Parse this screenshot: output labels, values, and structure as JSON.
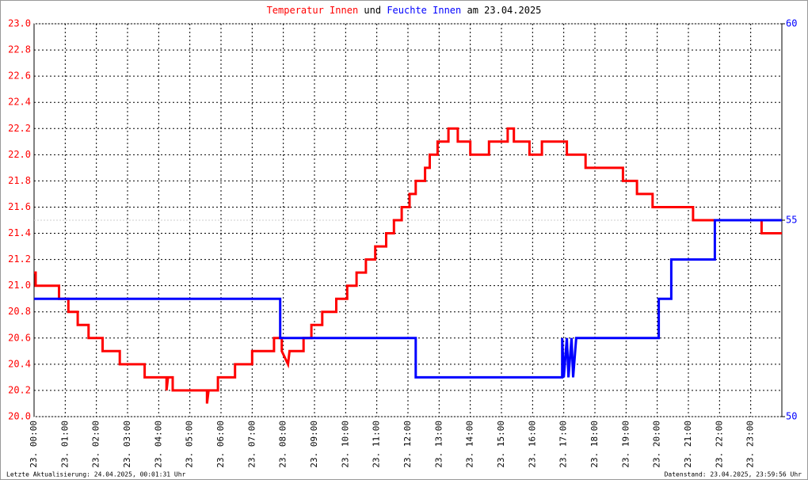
{
  "chart_data": {
    "type": "line",
    "title_parts": [
      {
        "text": "Temperatur Innen",
        "color": "#ff0000"
      },
      {
        "text": "und",
        "color": "#000000"
      },
      {
        "text": "Feuchte Innen",
        "color": "#0000ff"
      },
      {
        "text": "am 23.04.2025",
        "color": "#000000"
      }
    ],
    "footer_left": "Letzte Aktualisierung: 24.04.2025, 00:01:31 Uhr",
    "footer_right": "Datenstand: 23.04.2025, 23:59:56 Uhr",
    "xlim": [
      0,
      24
    ],
    "xticks": [
      {
        "value": 0,
        "label": "23. 00:00"
      },
      {
        "value": 1,
        "label": "23. 01:00"
      },
      {
        "value": 2,
        "label": "23. 02:00"
      },
      {
        "value": 3,
        "label": "23. 03:00"
      },
      {
        "value": 4,
        "label": "23. 04:00"
      },
      {
        "value": 5,
        "label": "23. 05:00"
      },
      {
        "value": 6,
        "label": "23. 06:00"
      },
      {
        "value": 7,
        "label": "23. 07:00"
      },
      {
        "value": 8,
        "label": "23. 08:00"
      },
      {
        "value": 9,
        "label": "23. 09:00"
      },
      {
        "value": 10,
        "label": "23. 10:00"
      },
      {
        "value": 11,
        "label": "23. 11:00"
      },
      {
        "value": 12,
        "label": "23. 12:00"
      },
      {
        "value": 13,
        "label": "23. 13:00"
      },
      {
        "value": 14,
        "label": "23. 14:00"
      },
      {
        "value": 15,
        "label": "23. 15:00"
      },
      {
        "value": 16,
        "label": "23. 16:00"
      },
      {
        "value": 17,
        "label": "23. 17:00"
      },
      {
        "value": 18,
        "label": "23. 18:00"
      },
      {
        "value": 19,
        "label": "23. 19:00"
      },
      {
        "value": 20,
        "label": "23. 20:00"
      },
      {
        "value": 21,
        "label": "23. 21:00"
      },
      {
        "value": 22,
        "label": "23. 22:00"
      },
      {
        "value": 23,
        "label": "23. 23:00"
      }
    ],
    "ylim": [
      20,
      23
    ],
    "yticks": [
      {
        "value": 20,
        "label": "20.0"
      },
      {
        "value": 20.2,
        "label": "20.2"
      },
      {
        "value": 20.4,
        "label": "20.4"
      },
      {
        "value": 20.6,
        "label": "20.6"
      },
      {
        "value": 20.8,
        "label": "20.8"
      },
      {
        "value": 21,
        "label": "21.0"
      },
      {
        "value": 21.2,
        "label": "21.2"
      },
      {
        "value": 21.4,
        "label": "21.4"
      },
      {
        "value": 21.6,
        "label": "21.6"
      },
      {
        "value": 21.8,
        "label": "21.8"
      },
      {
        "value": 22,
        "label": "22.0"
      },
      {
        "value": 22.2,
        "label": "22.2"
      },
      {
        "value": 22.4,
        "label": "22.4"
      },
      {
        "value": 22.6,
        "label": "22.6"
      },
      {
        "value": 22.8,
        "label": "22.8"
      },
      {
        "value": 23,
        "label": "23.0"
      }
    ],
    "y2lim": [
      50,
      60
    ],
    "y2ticks": [
      50,
      55,
      60
    ],
    "grid": true,
    "series": [
      {
        "name": "Temperatur Innen",
        "color": "#ff0000",
        "x": [
          0,
          0.05,
          0.05,
          0.8,
          0.8,
          1.1,
          1.1,
          1.4,
          1.4,
          1.75,
          1.75,
          2.2,
          2.2,
          2.75,
          2.75,
          3.55,
          3.55,
          4.25,
          4.25,
          4.3,
          4.45,
          4.45,
          5.55,
          5.55,
          5.6,
          5.9,
          5.9,
          6.45,
          6.45,
          7.0,
          7.0,
          7.7,
          7.7,
          7.95,
          7.95,
          8.15,
          8.2,
          8.65,
          8.65,
          8.9,
          8.9,
          9.25,
          9.25,
          9.7,
          9.7,
          10.05,
          10.05,
          10.35,
          10.35,
          10.65,
          10.65,
          10.95,
          10.95,
          11.3,
          11.3,
          11.55,
          11.55,
          11.8,
          11.8,
          12.05,
          12.05,
          12.25,
          12.25,
          12.55,
          12.55,
          12.7,
          12.7,
          12.95,
          12.95,
          13.3,
          13.3,
          13.6,
          13.6,
          14.0,
          14.0,
          14.6,
          14.6,
          15.2,
          15.2,
          15.4,
          15.4,
          15.9,
          15.9,
          16.3,
          16.3,
          17.1,
          17.1,
          17.7,
          17.7,
          18.9,
          18.9,
          19.35,
          19.35,
          19.85,
          19.85,
          21.15,
          21.15,
          23.35,
          23.35,
          24
        ],
        "values": [
          21.1,
          21.1,
          21.0,
          21.0,
          20.9,
          20.9,
          20.8,
          20.8,
          20.7,
          20.7,
          20.6,
          20.6,
          20.5,
          20.5,
          20.4,
          20.4,
          20.3,
          20.3,
          20.2,
          20.3,
          20.3,
          20.2,
          20.2,
          20.1,
          20.2,
          20.2,
          20.3,
          20.3,
          20.4,
          20.4,
          20.5,
          20.5,
          20.6,
          20.6,
          20.5,
          20.4,
          20.5,
          20.5,
          20.6,
          20.6,
          20.7,
          20.7,
          20.8,
          20.8,
          20.9,
          20.9,
          21.0,
          21.0,
          21.1,
          21.1,
          21.2,
          21.2,
          21.3,
          21.3,
          21.4,
          21.4,
          21.5,
          21.5,
          21.6,
          21.6,
          21.7,
          21.7,
          21.8,
          21.8,
          21.9,
          21.9,
          22.0,
          22.0,
          22.1,
          22.1,
          22.2,
          22.2,
          22.1,
          22.1,
          22.0,
          22.0,
          22.1,
          22.1,
          22.2,
          22.2,
          22.1,
          22.1,
          22.0,
          22.0,
          22.1,
          22.1,
          22.0,
          22.0,
          21.9,
          21.9,
          21.8,
          21.8,
          21.7,
          21.7,
          21.6,
          21.6,
          21.5,
          21.5,
          21.4,
          21.4
        ]
      },
      {
        "name": "Feuchte Innen",
        "color": "#0000ff",
        "axis": "y2",
        "x": [
          0,
          7.9,
          7.9,
          12.25,
          12.25,
          16.95,
          16.95,
          17.0,
          17.1,
          17.15,
          17.25,
          17.3,
          17.4,
          17.45,
          20.05,
          20.05,
          20.45,
          20.45,
          21.85,
          21.85,
          24
        ],
        "values": [
          53,
          53,
          52,
          52,
          51,
          51,
          52,
          51,
          52,
          51,
          52,
          51,
          52,
          52,
          52,
          53,
          53,
          54,
          54,
          55,
          55
        ]
      }
    ]
  }
}
